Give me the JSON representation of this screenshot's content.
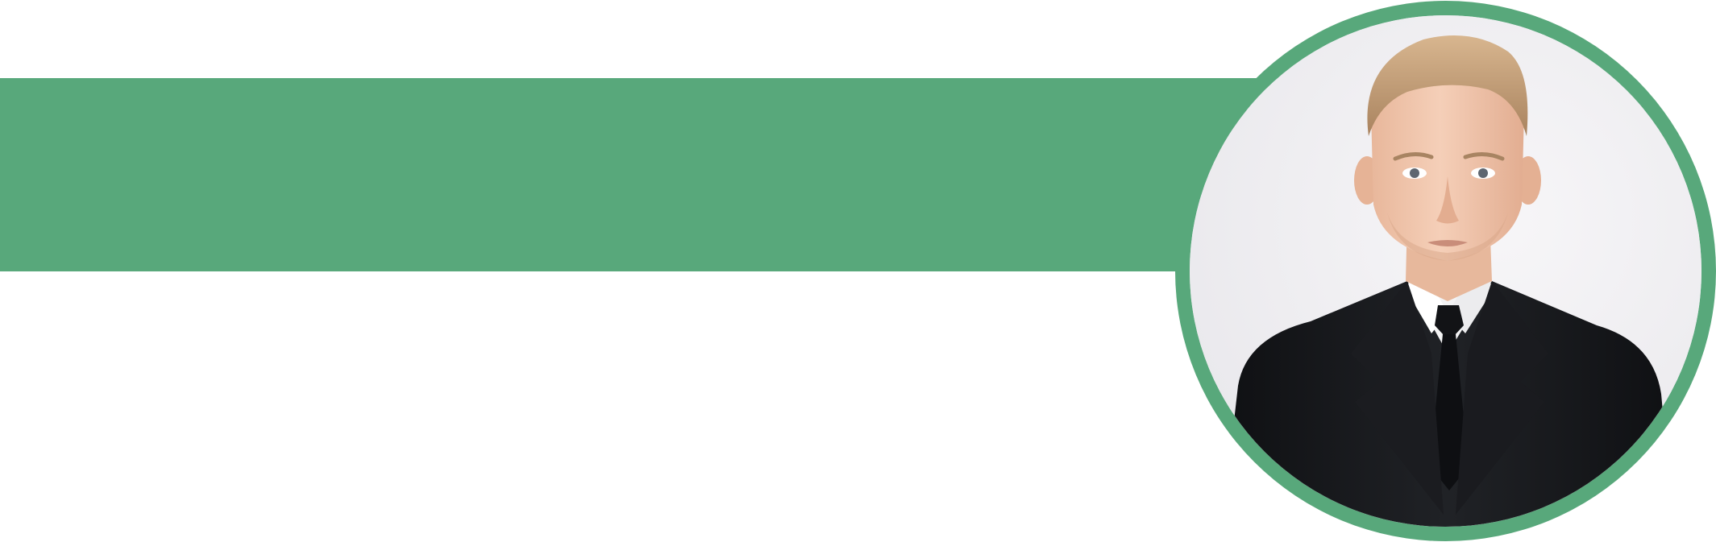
{
  "colors": {
    "accent": "#58a87b",
    "background": "#ffffff",
    "photo_background": "#f1f0f3",
    "suit": "#16171a",
    "shirt": "#f4f4f4",
    "tie": "#111214",
    "skin": "#f0c7ad",
    "hair": "#c7a178"
  },
  "portrait": {
    "icon": "person-portrait-icon"
  }
}
